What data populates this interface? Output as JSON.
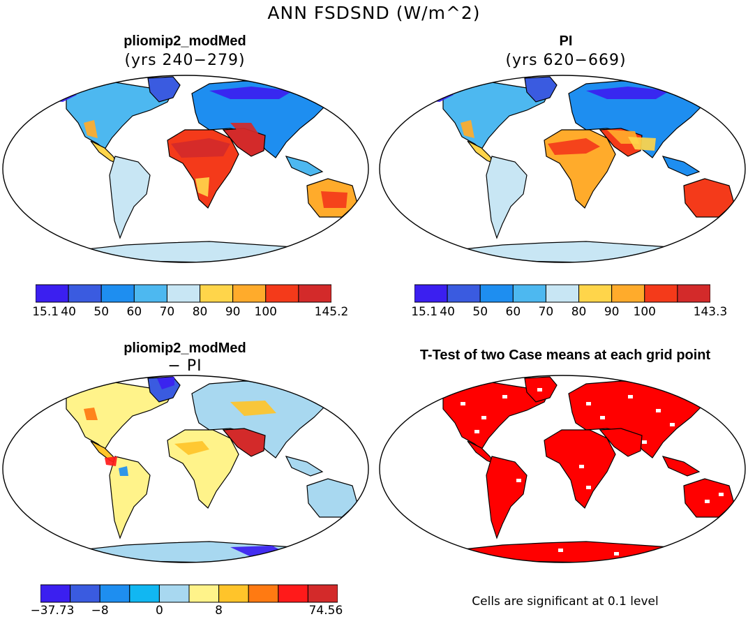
{
  "figure": {
    "title": "ANN FSDSND (W/m^2)"
  },
  "panels": {
    "top_left": {
      "title": "pliomip2_modMed",
      "subtitle": "(yrs 240−279)"
    },
    "top_right": {
      "title": "PI",
      "subtitle": "(yrs 620−669)"
    },
    "bottom_left": {
      "title": "pliomip2_modMed",
      "subtitle": "− PI"
    },
    "bottom_right": {
      "title": "T-Test of two Case means at each grid point",
      "note": "Cells are significant at 0.1 level"
    }
  },
  "colorbars": {
    "top_left": {
      "labels": [
        "15.1",
        "40",
        "50",
        "60",
        "70",
        "80",
        "90",
        "100",
        "145.2"
      ],
      "colors": [
        "#3b1ff0",
        "#3a5be0",
        "#1e8ef0",
        "#4db8f0",
        "#c8e6f4",
        "#ffd54a",
        "#ffab2b",
        "#f43a1a",
        "#d32a2a"
      ]
    },
    "top_right": {
      "labels": [
        "15.1",
        "40",
        "50",
        "60",
        "70",
        "80",
        "90",
        "100",
        "143.3"
      ],
      "colors": [
        "#3b1ff0",
        "#3a5be0",
        "#1e8ef0",
        "#4db8f0",
        "#c8e6f4",
        "#ffd54a",
        "#ffab2b",
        "#f43a1a",
        "#d32a2a"
      ]
    },
    "bottom_left": {
      "labels": [
        "−37.73",
        "−8",
        "0",
        "8",
        "74.56"
      ],
      "colors": [
        "#3b1ff0",
        "#3a5be0",
        "#1e8ef0",
        "#11b7f2",
        "#a8d8f0",
        "#fff38a",
        "#ffc42a",
        "#ff7a12",
        "#ff1a1a",
        "#d32a2a"
      ]
    }
  },
  "map_colors": {
    "ocean": "#ffffff",
    "coast": "#000000",
    "sig": "#ff0000"
  }
}
